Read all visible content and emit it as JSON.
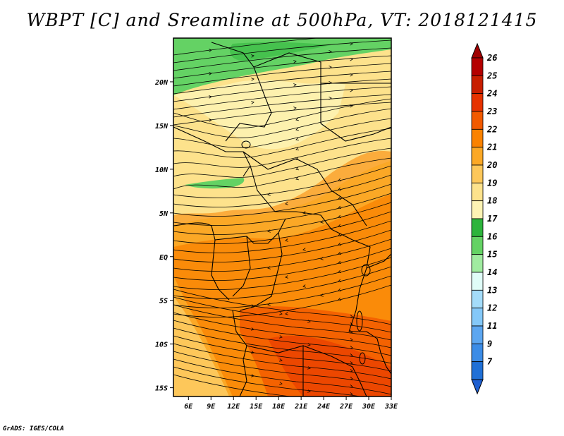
{
  "title": "WBPT [C] and Sreamline at 500hPa, VT: 2018121415",
  "credit": "GrADS: IGES/COLA",
  "map": {
    "lat_labels": [
      "20N",
      "15N",
      "10N",
      "5N",
      "EQ",
      "5S",
      "10S",
      "15S"
    ],
    "lon_labels": [
      "6E",
      "9E",
      "12E",
      "15E",
      "18E",
      "21E",
      "24E",
      "27E",
      "30E",
      "33E"
    ],
    "lon_range": [
      4,
      33
    ],
    "lat_range": [
      -16,
      25
    ]
  },
  "colorbar": {
    "levels": [
      "26",
      "25",
      "24",
      "23",
      "22",
      "21",
      "20",
      "19",
      "18",
      "17",
      "16",
      "15",
      "14",
      "13",
      "12",
      "11",
      "9",
      "7"
    ],
    "colors": [
      "#b40000",
      "#c81e00",
      "#e63200",
      "#f25a00",
      "#fa8200",
      "#fba826",
      "#fdc75a",
      "#fde28c",
      "#fdf3b4",
      "#2db43c",
      "#64d264",
      "#a0eba0",
      "#e0fdf8",
      "#a4dcfa",
      "#84c8f8",
      "#5ca6f0",
      "#3c8ce6",
      "#2070d6"
    ],
    "top_arrow_color": "#a00000",
    "bottom_arrow_color": "#1e5fd0"
  }
}
